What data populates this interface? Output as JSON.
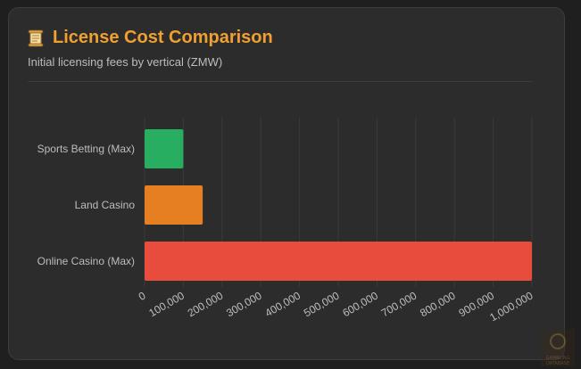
{
  "header": {
    "title": "License Cost Comparison",
    "subtitle": "Initial licensing fees by vertical (ZMW)",
    "title_icon": "scroll-icon"
  },
  "colors": {
    "title": "#f0a030",
    "sports_betting": "#27ae60",
    "land_casino": "#e67e22",
    "online_casino": "#e74c3c",
    "grid": "#3a3a3a",
    "tick_text": "#bdbdbd"
  },
  "watermark": {
    "icon": "gaming-database-logo",
    "text": "GAMBLING DATABASE"
  },
  "chart_data": {
    "type": "bar",
    "orientation": "horizontal",
    "categories": [
      "Sports Betting (Max)",
      "Land Casino",
      "Online Casino (Max)"
    ],
    "values": [
      100000,
      150000,
      1000000
    ],
    "bar_colors": [
      "#27ae60",
      "#e67e22",
      "#e74c3c"
    ],
    "xlim": [
      0,
      1000000
    ],
    "xticks": [
      "0",
      "100,000",
      "200,000",
      "300,000",
      "400,000",
      "500,000",
      "600,000",
      "700,000",
      "800,000",
      "900,000",
      "1,000,000"
    ],
    "grid": true,
    "legend": "none"
  }
}
